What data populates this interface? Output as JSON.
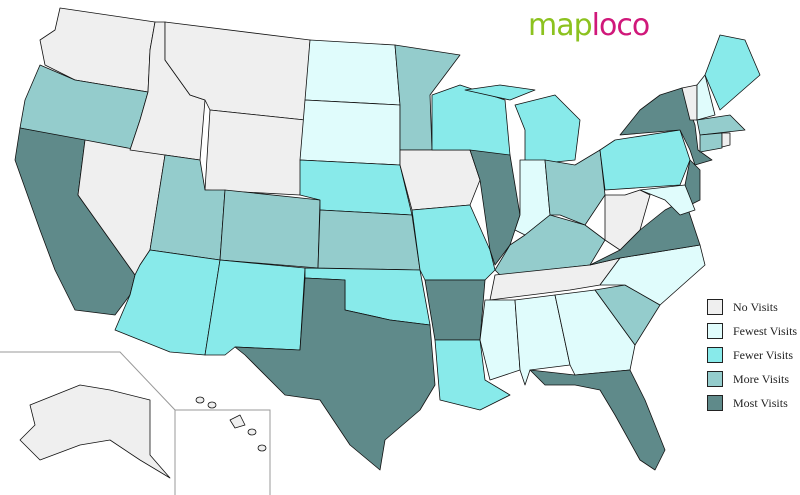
{
  "logo": {
    "part1": "map",
    "part2": "loco"
  },
  "colors": {
    "none": "#efefef",
    "fewest": "#e0fcfc",
    "fewer": "#88eaea",
    "more": "#94cccc",
    "most": "#5f8a8a"
  },
  "legend": [
    {
      "key": "none",
      "label": "No Visits"
    },
    {
      "key": "fewest",
      "label": "Fewest Visits"
    },
    {
      "key": "fewer",
      "label": "Fewer Visits"
    },
    {
      "key": "more",
      "label": "More Visits"
    },
    {
      "key": "most",
      "label": "Most Visits"
    }
  ],
  "states": {
    "WA": "none",
    "OR": "more",
    "CA": "most",
    "NV": "none",
    "ID": "none",
    "MT": "none",
    "WY": "none",
    "UT": "more",
    "AZ": "fewer",
    "CO": "more",
    "NM": "fewer",
    "ND": "fewest",
    "SD": "fewest",
    "NE": "fewer",
    "KS": "more",
    "OK": "fewer",
    "TX": "most",
    "MN": "more",
    "IA": "none",
    "MO": "fewer",
    "AR": "most",
    "LA": "fewer",
    "WI": "fewer",
    "IL": "most",
    "MI": "fewer",
    "MI_UP": "fewer",
    "IN": "fewest",
    "OH": "more",
    "KY": "more",
    "TN": "none",
    "MS": "fewest",
    "AL": "fewest",
    "GA": "fewest",
    "FL": "most",
    "SC": "more",
    "NC": "fewest",
    "VA": "most",
    "WV": "none",
    "PA": "fewer",
    "NY": "most",
    "NJ": "most",
    "MD": "fewest",
    "VT": "none",
    "NH": "fewest",
    "ME": "fewer",
    "MA": "more",
    "CT": "more",
    "RI": "none",
    "AK": "none",
    "HI": "none"
  }
}
